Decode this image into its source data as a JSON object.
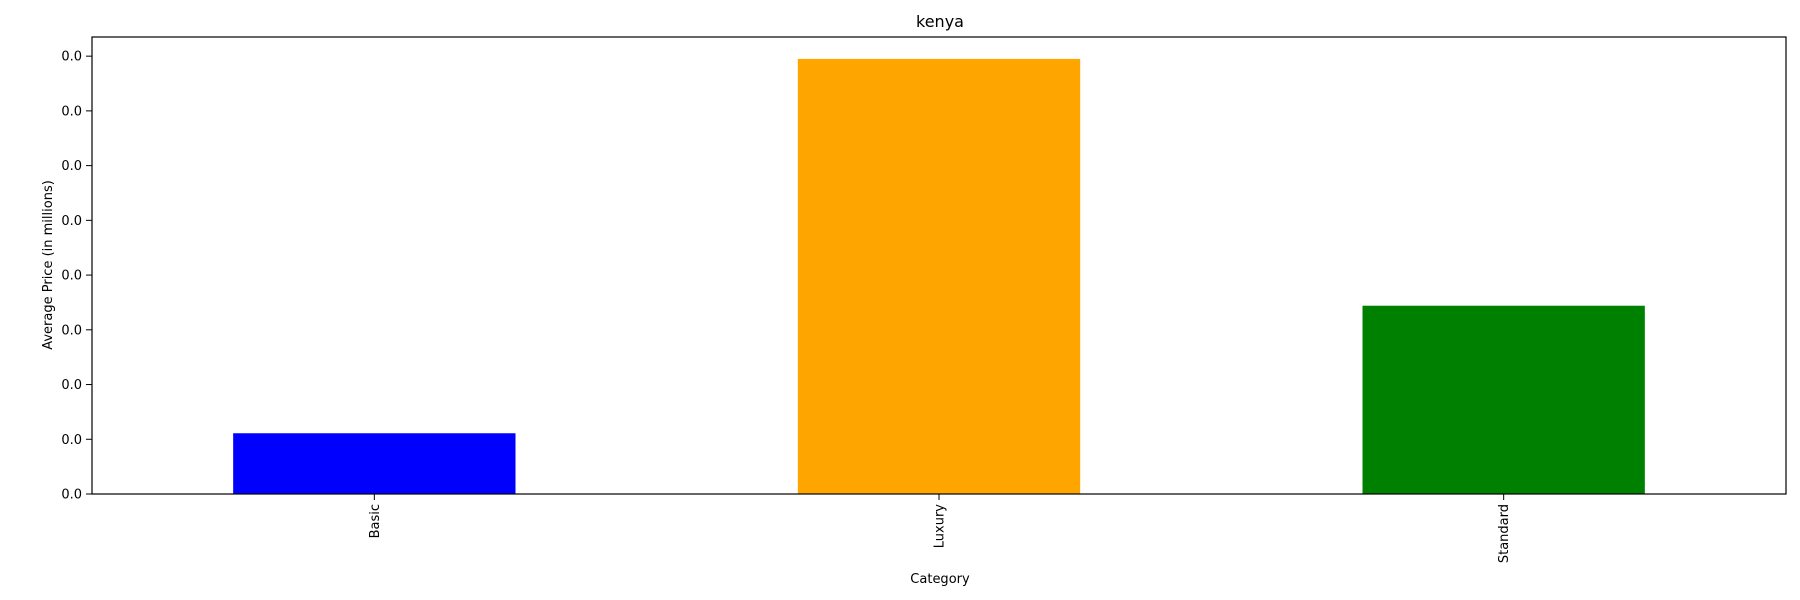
{
  "chart_data": {
    "type": "bar",
    "title": "kenya",
    "xlabel": "Category",
    "ylabel": "Average Price (in millions)",
    "categories": [
      "Basic",
      "Luxury",
      "Standard"
    ],
    "values": [
      1.11e-05,
      7.95e-05,
      3.44e-05
    ],
    "colors": [
      "#0000ff",
      "#ffa500",
      "#008000"
    ],
    "yticks": [
      0.0,
      1e-05,
      2e-05,
      3e-05,
      4e-05,
      5e-05,
      6e-05,
      7e-05,
      8e-05
    ],
    "ytick_labels": [
      "0.0",
      "0.0",
      "0.0",
      "0.0",
      "0.0",
      "0.0",
      "0.0",
      "0.0",
      "0.0"
    ],
    "ylim": [
      0,
      8.35e-05
    ],
    "legend": "none",
    "grid": false
  }
}
